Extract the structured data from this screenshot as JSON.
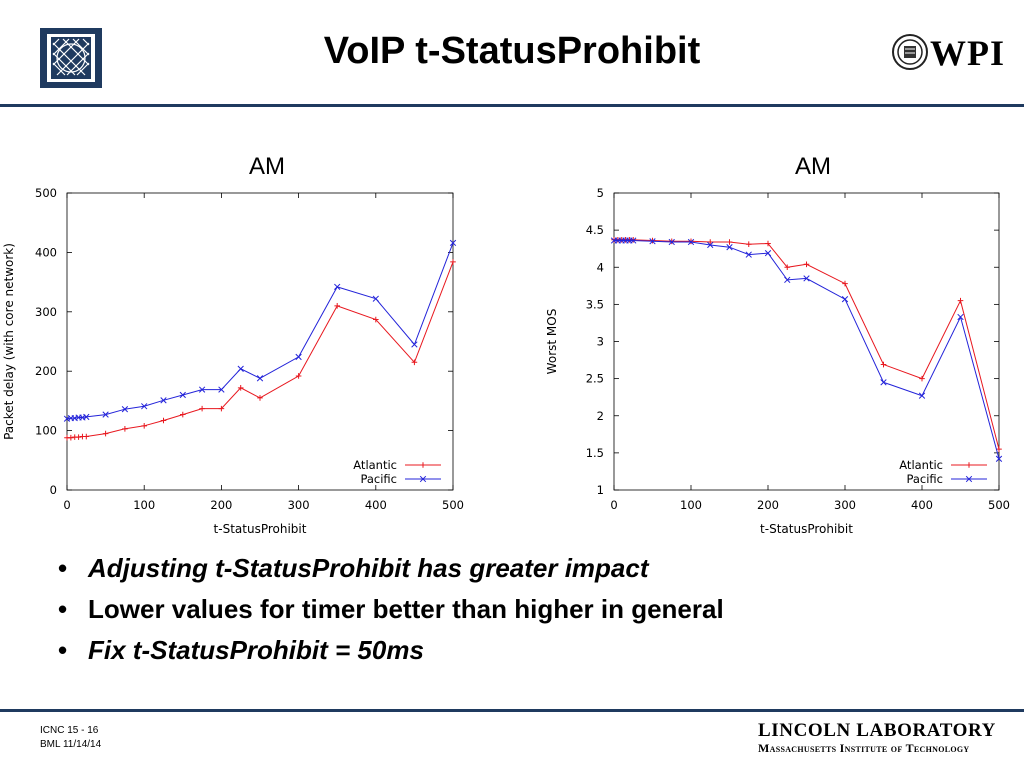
{
  "slide": {
    "title": "VoIP t-StatusProhibit",
    "bullets": [
      {
        "text": "Adjusting t-StatusProhibit has greater impact",
        "italic": true
      },
      {
        "text": "Lower values for timer better than higher in general",
        "italic": false
      },
      {
        "text": "Fix t-StatusProhibit = 50ms",
        "italic": true
      }
    ],
    "bullet_glyph": "•",
    "footer": {
      "line1": "ICNC 15 - 16",
      "line2": "BML  11/14/14"
    },
    "lincoln": {
      "line1": "LINCOLN LABORATORY",
      "line2": "Massachusetts Institute of Technology"
    },
    "wpi": "WPI"
  },
  "colors": {
    "accent": "#1f3a5f",
    "atlantic": "#e8181f",
    "pacific": "#2323d9"
  },
  "chart_data": [
    {
      "type": "line",
      "title": "AM",
      "xlabel": "t-StatusProhibit",
      "ylabel": "Packet delay (with core network)",
      "xlim": [
        0,
        500
      ],
      "ylim": [
        0,
        500
      ],
      "xticks": [
        0,
        100,
        200,
        300,
        400,
        500
      ],
      "yticks": [
        0,
        100,
        200,
        300,
        400,
        500
      ],
      "ytick_labels": [
        "0",
        "100",
        "200",
        "300",
        "400",
        "500"
      ],
      "legend_position": "bottom-right",
      "series": [
        {
          "name": "Atlantic",
          "color": "#e8181f",
          "marker": "+",
          "x": [
            0,
            5,
            10,
            15,
            20,
            25,
            50,
            75,
            100,
            125,
            150,
            175,
            200,
            225,
            250,
            300,
            350,
            400,
            450,
            500
          ],
          "y": [
            88,
            88,
            89,
            89,
            90,
            90,
            95,
            103,
            108,
            117,
            127,
            137,
            137,
            172,
            155,
            192,
            310,
            287,
            215,
            384
          ]
        },
        {
          "name": "Pacific",
          "color": "#2323d9",
          "marker": "x",
          "x": [
            0,
            5,
            10,
            15,
            20,
            25,
            50,
            75,
            100,
            125,
            150,
            175,
            200,
            225,
            250,
            300,
            350,
            400,
            450,
            500
          ],
          "y": [
            120,
            121,
            121,
            122,
            122,
            123,
            127,
            136,
            141,
            151,
            160,
            169,
            169,
            204,
            188,
            224,
            342,
            322,
            245,
            416
          ]
        }
      ]
    },
    {
      "type": "line",
      "title": "AM",
      "xlabel": "t-StatusProhibit",
      "ylabel": "Worst MOS",
      "xlim": [
        0,
        500
      ],
      "ylim": [
        1,
        5
      ],
      "xticks": [
        0,
        100,
        200,
        300,
        400,
        500
      ],
      "yticks": [
        1,
        1.5,
        2,
        2.5,
        3,
        3.5,
        4,
        4.5,
        5
      ],
      "ytick_labels": [
        "1",
        "1.5",
        "2",
        "2.5",
        "3",
        "3.5",
        "4",
        "4.5",
        "5"
      ],
      "legend_position": "bottom-right",
      "series": [
        {
          "name": "Atlantic",
          "color": "#e8181f",
          "marker": "+",
          "x": [
            0,
            5,
            10,
            15,
            20,
            25,
            50,
            75,
            100,
            125,
            150,
            175,
            200,
            225,
            250,
            300,
            350,
            400,
            450,
            500
          ],
          "y": [
            4.37,
            4.37,
            4.37,
            4.37,
            4.37,
            4.37,
            4.36,
            4.35,
            4.35,
            4.34,
            4.34,
            4.31,
            4.32,
            4.0,
            4.04,
            3.78,
            2.69,
            2.5,
            3.55,
            1.55
          ]
        },
        {
          "name": "Pacific",
          "color": "#2323d9",
          "marker": "x",
          "x": [
            0,
            5,
            10,
            15,
            20,
            25,
            50,
            75,
            100,
            125,
            150,
            175,
            200,
            225,
            250,
            300,
            350,
            400,
            450,
            500
          ],
          "y": [
            4.36,
            4.36,
            4.36,
            4.36,
            4.36,
            4.36,
            4.35,
            4.34,
            4.34,
            4.3,
            4.27,
            4.17,
            4.19,
            3.83,
            3.85,
            3.57,
            2.45,
            2.27,
            3.33,
            1.42
          ]
        }
      ]
    }
  ]
}
